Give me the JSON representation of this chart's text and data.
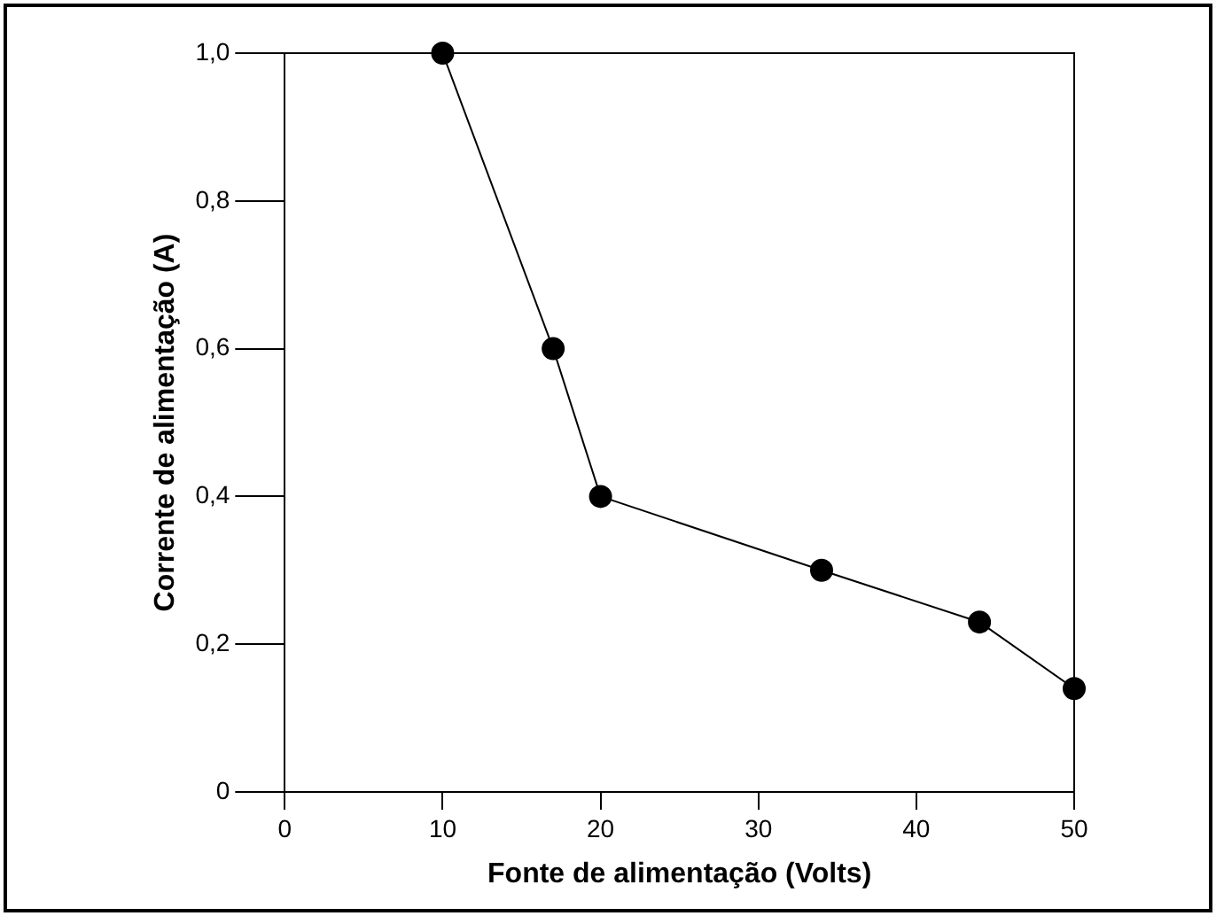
{
  "chart_data": {
    "type": "line",
    "xlabel": "Fonte de alimentação (Volts)",
    "ylabel": "Corrente de alimentação (A)",
    "x": [
      10,
      17,
      20,
      34,
      44,
      50
    ],
    "series": [
      {
        "color": "#000000",
        "values": [
          1.0,
          0.6,
          0.4,
          0.3,
          0.23,
          0.14
        ]
      }
    ],
    "xlim": [
      0,
      50
    ],
    "xticks": [
      0,
      10,
      20,
      30,
      40,
      50
    ],
    "ylim": [
      0,
      1
    ],
    "yticks": [
      0,
      {
        "value": 0.2,
        "label": "0,2"
      },
      {
        "value": 0.4,
        "label": "0,4"
      },
      {
        "value": 0.6,
        "label": "0,6"
      },
      {
        "value": 0.8,
        "label": "0,8"
      },
      {
        "value": 1,
        "label": "1,0"
      }
    ],
    "grid": false,
    "legend": false,
    "marker": "circle",
    "line_style": "solid"
  }
}
